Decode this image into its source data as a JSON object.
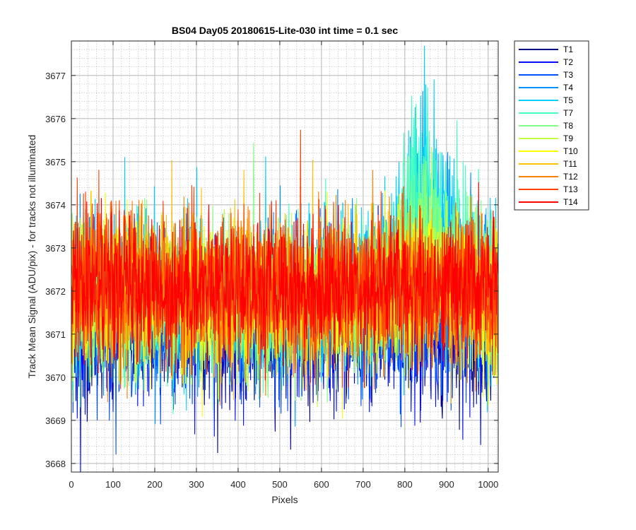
{
  "chart_data": {
    "type": "line",
    "title": "BS04 Day05 20180615-Lite-030 int time = 0.1 sec",
    "xlabel": "Pixels",
    "ylabel": "Track Mean Signal (ADU/pix) - for tracks not illuminated",
    "xlim": [
      0,
      1024
    ],
    "ylim": [
      3667.8,
      3677.8
    ],
    "x_ticks": [
      0,
      100,
      200,
      300,
      400,
      500,
      600,
      700,
      800,
      900,
      1000
    ],
    "x_tick_labels": [
      "0",
      "100",
      "200",
      "300",
      "400",
      "500",
      "600",
      "700",
      "800",
      "900",
      "1000"
    ],
    "y_ticks": [
      3668,
      3669,
      3670,
      3671,
      3672,
      3673,
      3674,
      3675,
      3676,
      3677
    ],
    "y_tick_labels": [
      "3668",
      "3669",
      "3670",
      "3671",
      "3672",
      "3673",
      "3674",
      "3675",
      "3676",
      "3677"
    ],
    "grid": true,
    "minor_grid": true,
    "legend_position": "outside-top-right",
    "num_points": 1024,
    "series": [
      {
        "name": "T1",
        "color": "#00008f",
        "mean": 3671.2,
        "noise": 0.85,
        "bump": 0.0
      },
      {
        "name": "T2",
        "color": "#0010ff",
        "mean": 3671.1,
        "noise": 0.85,
        "bump": 0.0
      },
      {
        "name": "T3",
        "color": "#0050ff",
        "mean": 3671.4,
        "noise": 0.85,
        "bump": 0.0
      },
      {
        "name": "T4",
        "color": "#0090ff",
        "mean": 3671.9,
        "noise": 0.9,
        "bump": 1.5
      },
      {
        "name": "T5",
        "color": "#00d0ff",
        "mean": 3671.9,
        "noise": 0.9,
        "bump": 2.2
      },
      {
        "name": "T7",
        "color": "#40ffbf",
        "mean": 3671.8,
        "noise": 0.85,
        "bump": 2.4
      },
      {
        "name": "T8",
        "color": "#80ff80",
        "mean": 3671.8,
        "noise": 0.85,
        "bump": 1.2
      },
      {
        "name": "T9",
        "color": "#bfff40",
        "mean": 3671.8,
        "noise": 0.85,
        "bump": 0.6
      },
      {
        "name": "T10",
        "color": "#ffff00",
        "mean": 3671.9,
        "noise": 0.85,
        "bump": 0.3
      },
      {
        "name": "T11",
        "color": "#ffbf00",
        "mean": 3672.0,
        "noise": 0.85,
        "bump": 0.0
      },
      {
        "name": "T12",
        "color": "#ff8000",
        "mean": 3672.0,
        "noise": 0.85,
        "bump": 0.0
      },
      {
        "name": "T13",
        "color": "#ff4000",
        "mean": 3672.1,
        "noise": 0.85,
        "bump": 0.0
      },
      {
        "name": "T14",
        "color": "#ff0000",
        "mean": 3672.1,
        "noise": 0.8,
        "bump": 0.0
      }
    ]
  }
}
